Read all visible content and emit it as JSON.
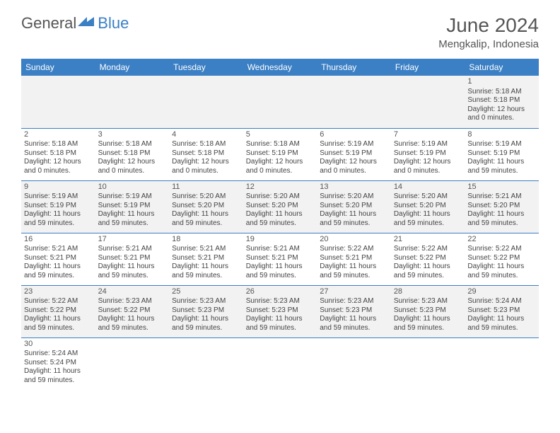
{
  "logo": {
    "text_general": "General",
    "text_blue": "Blue"
  },
  "title": "June 2024",
  "location": "Mengkalip, Indonesia",
  "day_names": [
    "Sunday",
    "Monday",
    "Tuesday",
    "Wednesday",
    "Thursday",
    "Friday",
    "Saturday"
  ],
  "colors": {
    "header_bg": "#3b7fc4",
    "header_text": "#ffffff",
    "alt_row": "#f2f2f2"
  },
  "weeks": [
    [
      null,
      null,
      null,
      null,
      null,
      null,
      {
        "n": "1",
        "sunrise": "Sunrise: 5:18 AM",
        "sunset": "Sunset: 5:18 PM",
        "daylight1": "Daylight: 12 hours",
        "daylight2": "and 0 minutes."
      }
    ],
    [
      {
        "n": "2",
        "sunrise": "Sunrise: 5:18 AM",
        "sunset": "Sunset: 5:18 PM",
        "daylight1": "Daylight: 12 hours",
        "daylight2": "and 0 minutes."
      },
      {
        "n": "3",
        "sunrise": "Sunrise: 5:18 AM",
        "sunset": "Sunset: 5:18 PM",
        "daylight1": "Daylight: 12 hours",
        "daylight2": "and 0 minutes."
      },
      {
        "n": "4",
        "sunrise": "Sunrise: 5:18 AM",
        "sunset": "Sunset: 5:18 PM",
        "daylight1": "Daylight: 12 hours",
        "daylight2": "and 0 minutes."
      },
      {
        "n": "5",
        "sunrise": "Sunrise: 5:18 AM",
        "sunset": "Sunset: 5:19 PM",
        "daylight1": "Daylight: 12 hours",
        "daylight2": "and 0 minutes."
      },
      {
        "n": "6",
        "sunrise": "Sunrise: 5:19 AM",
        "sunset": "Sunset: 5:19 PM",
        "daylight1": "Daylight: 12 hours",
        "daylight2": "and 0 minutes."
      },
      {
        "n": "7",
        "sunrise": "Sunrise: 5:19 AM",
        "sunset": "Sunset: 5:19 PM",
        "daylight1": "Daylight: 12 hours",
        "daylight2": "and 0 minutes."
      },
      {
        "n": "8",
        "sunrise": "Sunrise: 5:19 AM",
        "sunset": "Sunset: 5:19 PM",
        "daylight1": "Daylight: 11 hours",
        "daylight2": "and 59 minutes."
      }
    ],
    [
      {
        "n": "9",
        "sunrise": "Sunrise: 5:19 AM",
        "sunset": "Sunset: 5:19 PM",
        "daylight1": "Daylight: 11 hours",
        "daylight2": "and 59 minutes."
      },
      {
        "n": "10",
        "sunrise": "Sunrise: 5:19 AM",
        "sunset": "Sunset: 5:19 PM",
        "daylight1": "Daylight: 11 hours",
        "daylight2": "and 59 minutes."
      },
      {
        "n": "11",
        "sunrise": "Sunrise: 5:20 AM",
        "sunset": "Sunset: 5:20 PM",
        "daylight1": "Daylight: 11 hours",
        "daylight2": "and 59 minutes."
      },
      {
        "n": "12",
        "sunrise": "Sunrise: 5:20 AM",
        "sunset": "Sunset: 5:20 PM",
        "daylight1": "Daylight: 11 hours",
        "daylight2": "and 59 minutes."
      },
      {
        "n": "13",
        "sunrise": "Sunrise: 5:20 AM",
        "sunset": "Sunset: 5:20 PM",
        "daylight1": "Daylight: 11 hours",
        "daylight2": "and 59 minutes."
      },
      {
        "n": "14",
        "sunrise": "Sunrise: 5:20 AM",
        "sunset": "Sunset: 5:20 PM",
        "daylight1": "Daylight: 11 hours",
        "daylight2": "and 59 minutes."
      },
      {
        "n": "15",
        "sunrise": "Sunrise: 5:21 AM",
        "sunset": "Sunset: 5:20 PM",
        "daylight1": "Daylight: 11 hours",
        "daylight2": "and 59 minutes."
      }
    ],
    [
      {
        "n": "16",
        "sunrise": "Sunrise: 5:21 AM",
        "sunset": "Sunset: 5:21 PM",
        "daylight1": "Daylight: 11 hours",
        "daylight2": "and 59 minutes."
      },
      {
        "n": "17",
        "sunrise": "Sunrise: 5:21 AM",
        "sunset": "Sunset: 5:21 PM",
        "daylight1": "Daylight: 11 hours",
        "daylight2": "and 59 minutes."
      },
      {
        "n": "18",
        "sunrise": "Sunrise: 5:21 AM",
        "sunset": "Sunset: 5:21 PM",
        "daylight1": "Daylight: 11 hours",
        "daylight2": "and 59 minutes."
      },
      {
        "n": "19",
        "sunrise": "Sunrise: 5:21 AM",
        "sunset": "Sunset: 5:21 PM",
        "daylight1": "Daylight: 11 hours",
        "daylight2": "and 59 minutes."
      },
      {
        "n": "20",
        "sunrise": "Sunrise: 5:22 AM",
        "sunset": "Sunset: 5:21 PM",
        "daylight1": "Daylight: 11 hours",
        "daylight2": "and 59 minutes."
      },
      {
        "n": "21",
        "sunrise": "Sunrise: 5:22 AM",
        "sunset": "Sunset: 5:22 PM",
        "daylight1": "Daylight: 11 hours",
        "daylight2": "and 59 minutes."
      },
      {
        "n": "22",
        "sunrise": "Sunrise: 5:22 AM",
        "sunset": "Sunset: 5:22 PM",
        "daylight1": "Daylight: 11 hours",
        "daylight2": "and 59 minutes."
      }
    ],
    [
      {
        "n": "23",
        "sunrise": "Sunrise: 5:22 AM",
        "sunset": "Sunset: 5:22 PM",
        "daylight1": "Daylight: 11 hours",
        "daylight2": "and 59 minutes."
      },
      {
        "n": "24",
        "sunrise": "Sunrise: 5:23 AM",
        "sunset": "Sunset: 5:22 PM",
        "daylight1": "Daylight: 11 hours",
        "daylight2": "and 59 minutes."
      },
      {
        "n": "25",
        "sunrise": "Sunrise: 5:23 AM",
        "sunset": "Sunset: 5:23 PM",
        "daylight1": "Daylight: 11 hours",
        "daylight2": "and 59 minutes."
      },
      {
        "n": "26",
        "sunrise": "Sunrise: 5:23 AM",
        "sunset": "Sunset: 5:23 PM",
        "daylight1": "Daylight: 11 hours",
        "daylight2": "and 59 minutes."
      },
      {
        "n": "27",
        "sunrise": "Sunrise: 5:23 AM",
        "sunset": "Sunset: 5:23 PM",
        "daylight1": "Daylight: 11 hours",
        "daylight2": "and 59 minutes."
      },
      {
        "n": "28",
        "sunrise": "Sunrise: 5:23 AM",
        "sunset": "Sunset: 5:23 PM",
        "daylight1": "Daylight: 11 hours",
        "daylight2": "and 59 minutes."
      },
      {
        "n": "29",
        "sunrise": "Sunrise: 5:24 AM",
        "sunset": "Sunset: 5:23 PM",
        "daylight1": "Daylight: 11 hours",
        "daylight2": "and 59 minutes."
      }
    ],
    [
      {
        "n": "30",
        "sunrise": "Sunrise: 5:24 AM",
        "sunset": "Sunset: 5:24 PM",
        "daylight1": "Daylight: 11 hours",
        "daylight2": "and 59 minutes."
      },
      null,
      null,
      null,
      null,
      null,
      null
    ]
  ]
}
